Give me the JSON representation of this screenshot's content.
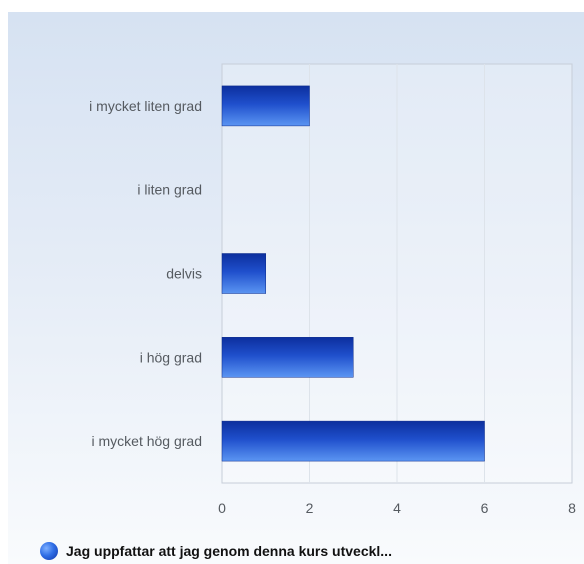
{
  "chart_data": {
    "type": "bar",
    "orientation": "horizontal",
    "categories": [
      "i mycket liten grad",
      "i liten grad",
      "delvis",
      "i hög grad",
      "i mycket hög grad"
    ],
    "series": [
      {
        "name": "Jag uppfattar att jag genom denna kurs utveckl...",
        "values": [
          2,
          0,
          1,
          3,
          6
        ]
      }
    ],
    "xlim": [
      0,
      8
    ],
    "xticks": [
      "0",
      "2",
      "4",
      "6",
      "8"
    ],
    "grid": true,
    "legend_position": "bottom-left",
    "colors": {
      "bar_dark": "#0c2f9e",
      "bar_light": "#5b95f2",
      "background_top": "#d6e2f2",
      "background_bottom": "#f9fbfd"
    }
  },
  "legend": {
    "label": "Jag uppfattar att jag genom denna kurs utveckl..."
  }
}
